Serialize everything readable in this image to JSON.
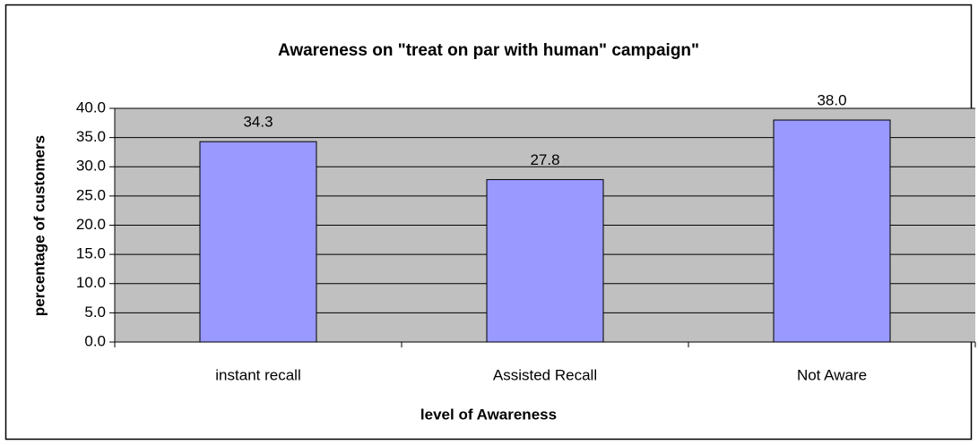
{
  "chart_data": {
    "type": "bar",
    "title": "Awareness on \"treat on par with human\" campaign\"",
    "x_label": "level of Awareness",
    "y_label": "percentage of customers",
    "categories": [
      "instant recall",
      "Assisted Recall",
      "Not Aware"
    ],
    "values": [
      34.3,
      27.8,
      38.0
    ],
    "value_labels": [
      "34.3",
      "27.8",
      "38.0"
    ],
    "color": "#9999ff",
    "ylim": [
      0,
      40
    ],
    "yticks": [
      {
        "value": 0,
        "label": "0.0"
      },
      {
        "value": 5,
        "label": "5.0"
      },
      {
        "value": 10,
        "label": "10.0"
      },
      {
        "value": 15,
        "label": "15.0"
      },
      {
        "value": 20,
        "label": "20.0"
      },
      {
        "value": 25,
        "label": "25.0"
      },
      {
        "value": 30,
        "label": "30.0"
      },
      {
        "value": 35,
        "label": "35.0"
      },
      {
        "value": 40,
        "label": "40.0"
      }
    ],
    "grid": true
  }
}
